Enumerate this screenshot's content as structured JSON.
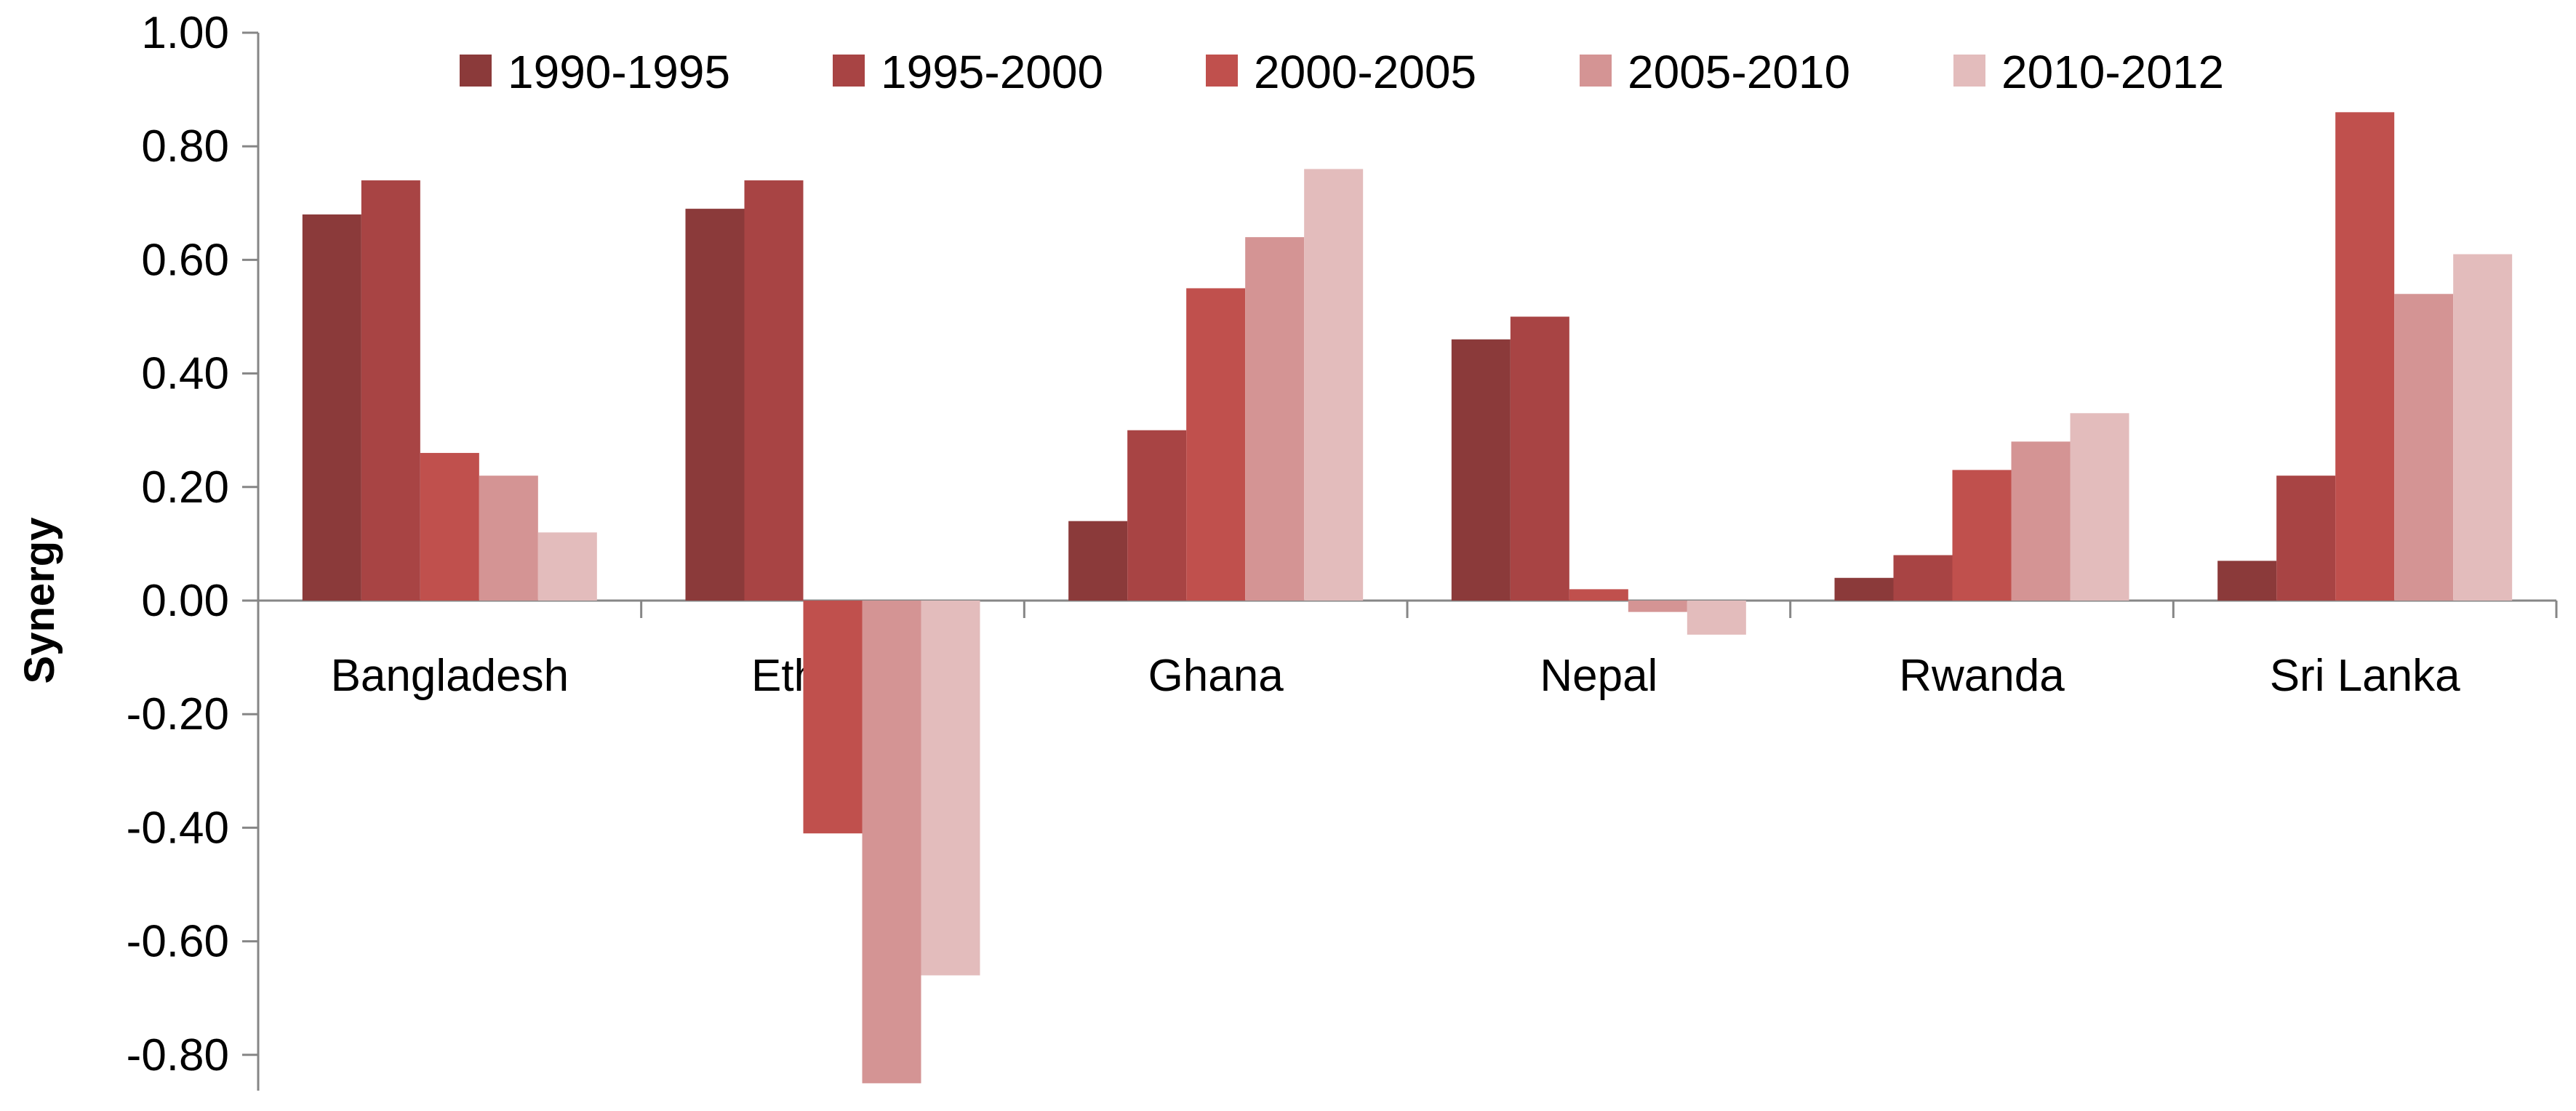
{
  "chart_data": {
    "type": "bar",
    "title": "",
    "xlabel": "",
    "ylabel": "Synergy",
    "ylim": [
      -0.86,
      1.0
    ],
    "yticks": [
      "1.00",
      "0.80",
      "0.60",
      "0.40",
      "0.20",
      "0.00",
      "-0.20",
      "-0.40",
      "-0.60",
      "-0.80"
    ],
    "ytick_values": [
      1.0,
      0.8,
      0.6,
      0.4,
      0.2,
      0.0,
      -0.2,
      -0.4,
      -0.6,
      -0.8
    ],
    "grid": false,
    "legend_position": "top",
    "categories": [
      "Bangladesh",
      "Ethiopia",
      "Ghana",
      "Nepal",
      "Rwanda",
      "Sri Lanka"
    ],
    "series": [
      {
        "name": "1990-1995",
        "color": "#8b3a3a",
        "values": [
          0.68,
          0.69,
          0.14,
          0.46,
          0.04,
          0.07
        ]
      },
      {
        "name": "1995-2000",
        "color": "#a84444",
        "values": [
          0.74,
          0.74,
          0.3,
          0.5,
          0.08,
          0.22
        ]
      },
      {
        "name": "2000-2005",
        "color": "#c0504d",
        "values": [
          0.26,
          -0.41,
          0.55,
          0.02,
          0.23,
          0.86
        ]
      },
      {
        "name": "2005-2010",
        "color": "#d49494",
        "values": [
          0.22,
          -0.85,
          0.64,
          -0.02,
          0.28,
          0.54
        ]
      },
      {
        "name": "2010-2012",
        "color": "#e3bcbc",
        "values": [
          0.12,
          -0.66,
          0.76,
          -0.06,
          0.33,
          0.61
        ]
      }
    ]
  }
}
